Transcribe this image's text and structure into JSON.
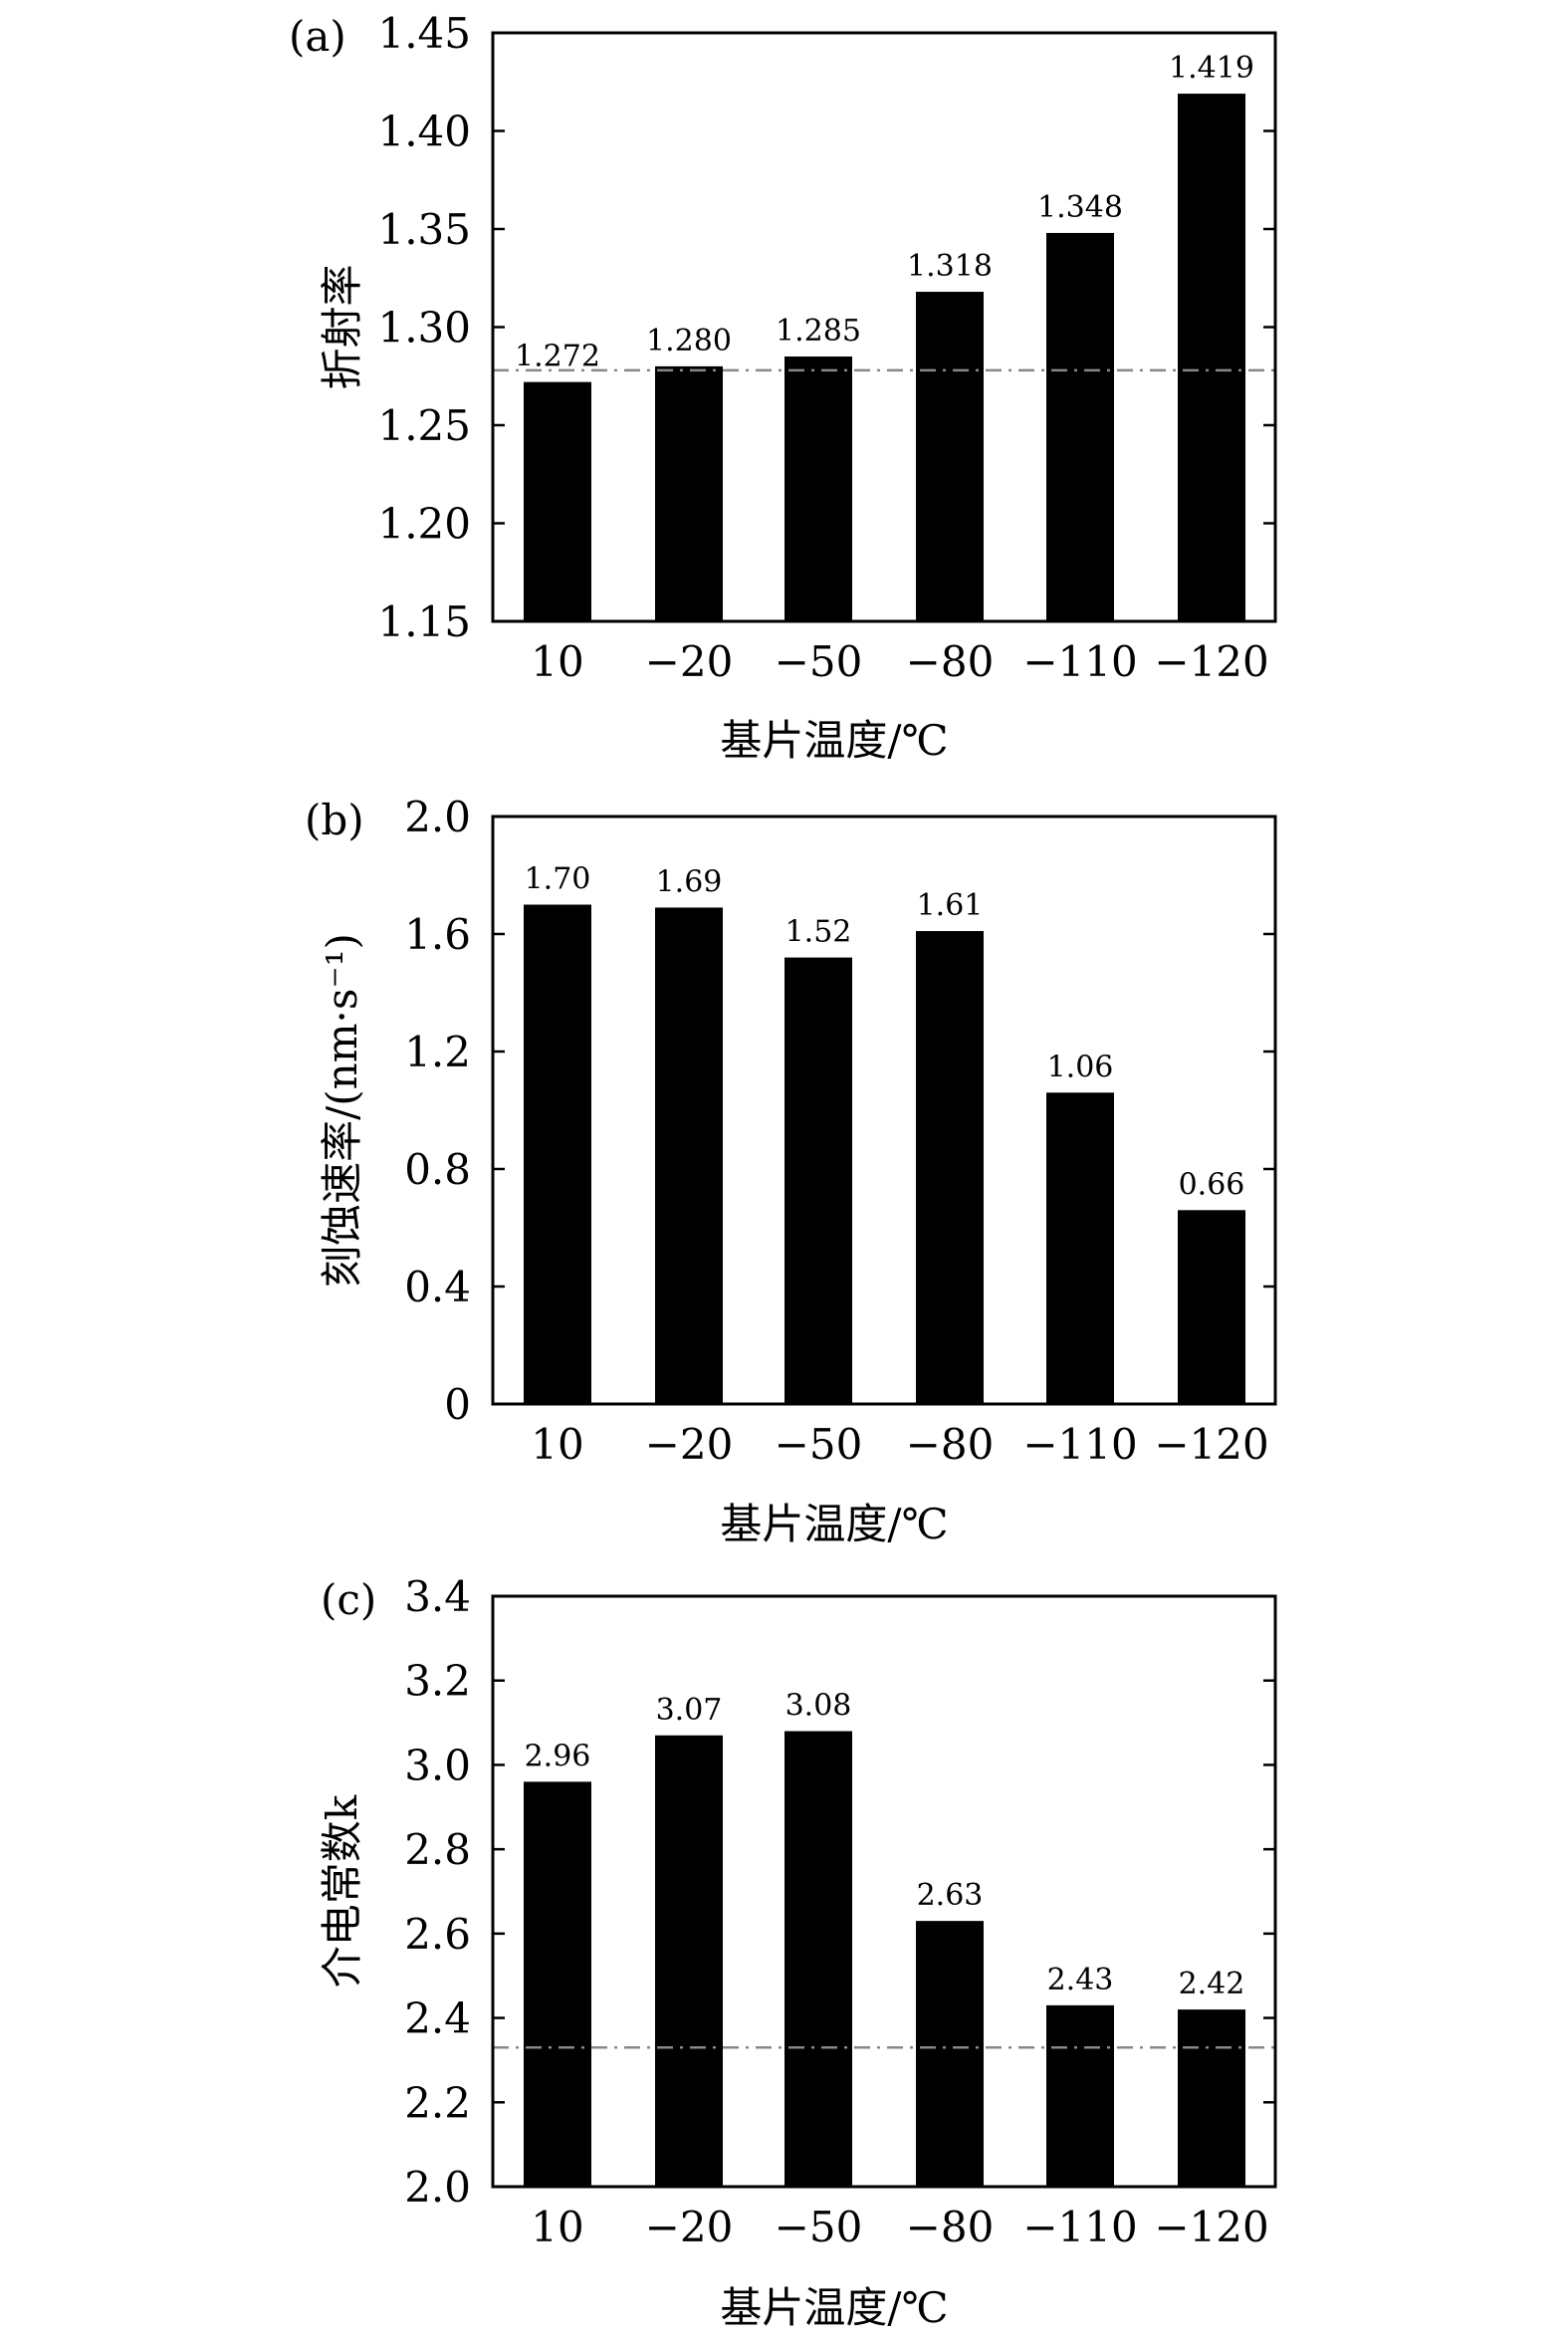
{
  "chart_data": [
    {
      "type": "bar",
      "panel_label": "(a)",
      "categories": [
        "10",
        "−20",
        "−50",
        "−80",
        "−110",
        "−120"
      ],
      "values": [
        1.272,
        1.28,
        1.285,
        1.318,
        1.348,
        1.419
      ],
      "data_labels": [
        "1.272",
        "1.280",
        "1.285",
        "1.318",
        "1.348",
        "1.419"
      ],
      "xlabel": "基片温度/℃",
      "ylabel": "折射率",
      "ylim": [
        1.15,
        1.45
      ],
      "yticks": [
        "1.15",
        "1.20",
        "1.25",
        "1.30",
        "1.35",
        "1.40",
        "1.45"
      ],
      "reference_line": 1.278,
      "bar_color": "#000000",
      "reference_line_color": "#888888",
      "grid": false
    },
    {
      "type": "bar",
      "panel_label": "(b)",
      "categories": [
        "10",
        "−20",
        "−50",
        "−80",
        "−110",
        "−120"
      ],
      "values": [
        1.7,
        1.69,
        1.52,
        1.61,
        1.06,
        0.66
      ],
      "data_labels": [
        "1.70",
        "1.69",
        "1.52",
        "1.61",
        "1.06",
        "0.66"
      ],
      "xlabel": "基片温度/℃",
      "ylabel": "刻蚀速率/(nm·s⁻¹)",
      "ylim": [
        0,
        2.0
      ],
      "yticks": [
        "0",
        "0.4",
        "0.8",
        "1.2",
        "1.6",
        "2.0"
      ],
      "bar_color": "#000000",
      "grid": false
    },
    {
      "type": "bar",
      "panel_label": "(c)",
      "categories": [
        "10",
        "−20",
        "−50",
        "−80",
        "−110",
        "−120"
      ],
      "values": [
        2.96,
        3.07,
        3.08,
        2.63,
        2.43,
        2.42
      ],
      "data_labels": [
        "2.96",
        "3.07",
        "3.08",
        "2.63",
        "2.43",
        "2.42"
      ],
      "xlabel": "基片温度/℃",
      "ylabel": "介电常数k",
      "ylim": [
        2.0,
        3.4
      ],
      "yticks": [
        "2.0",
        "2.2",
        "2.4",
        "2.6",
        "2.8",
        "3.0",
        "3.2",
        "3.4"
      ],
      "reference_line": 2.33,
      "bar_color": "#000000",
      "reference_line_color": "#888888",
      "grid": false
    }
  ]
}
